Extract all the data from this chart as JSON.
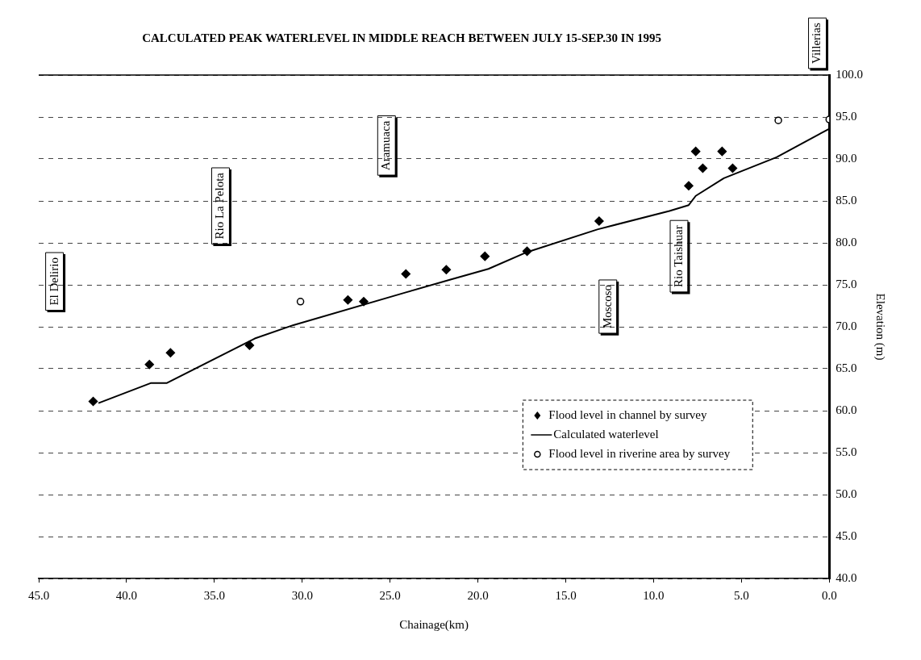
{
  "chart_data": {
    "type": "scatter",
    "title": "CALCULATED PEAK WATERLEVEL IN MIDDLE REACH BETWEEN JULY 15-SEP.30 IN 1995",
    "xlabel": "Chainage(km)",
    "ylabel": "Elevation (m)",
    "xlim": [
      45,
      0
    ],
    "xticks": [
      {
        "value": 45,
        "label": "45.0"
      },
      {
        "value": 40,
        "label": "40.0"
      },
      {
        "value": 35,
        "label": "35.0"
      },
      {
        "value": 30,
        "label": "30.0"
      },
      {
        "value": 25,
        "label": "25.0"
      },
      {
        "value": 20,
        "label": "20.0"
      },
      {
        "value": 15,
        "label": "15.0"
      },
      {
        "value": 10,
        "label": "10.0"
      },
      {
        "value": 5,
        "label": "5.0"
      },
      {
        "value": 0,
        "label": "0.0"
      }
    ],
    "ylim": [
      40,
      100
    ],
    "yticks": [
      {
        "value": 40,
        "label": "40.0"
      },
      {
        "value": 45,
        "label": "45.0"
      },
      {
        "value": 50,
        "label": "50.0"
      },
      {
        "value": 55,
        "label": "55.0"
      },
      {
        "value": 60,
        "label": "60.0"
      },
      {
        "value": 65,
        "label": "65.0"
      },
      {
        "value": 70,
        "label": "70.0"
      },
      {
        "value": 75,
        "label": "75.0"
      },
      {
        "value": 80,
        "label": "80.0"
      },
      {
        "value": 85,
        "label": "85.0"
      },
      {
        "value": 90,
        "label": "90.0"
      },
      {
        "value": 95,
        "label": "95.0"
      },
      {
        "value": 100,
        "label": "100.0"
      }
    ],
    "grid": "y",
    "legend": "bottom right",
    "series": [
      {
        "name": "Flood level in channel by survey",
        "type": "scatter",
        "marker": "diamond",
        "color": "#000000",
        "x": [
          41.9,
          38.7,
          37.5,
          33.0,
          27.4,
          26.5,
          24.1,
          21.8,
          19.6,
          17.2,
          13.1,
          8.0,
          7.6,
          7.2,
          6.1,
          5.5
        ],
        "values": [
          61.1,
          65.5,
          66.9,
          67.8,
          73.2,
          73.0,
          76.3,
          76.8,
          78.4,
          79.0,
          82.6,
          86.8,
          90.9,
          88.9,
          90.9,
          88.9
        ]
      },
      {
        "name": "Calculated waterlevel",
        "type": "line",
        "marker": "none",
        "line_style": "solid",
        "color": "#000000",
        "x": [
          41.6,
          38.6,
          37.7,
          32.7,
          30.5,
          24.1,
          21.6,
          19.4,
          17.2,
          13.2,
          9.1,
          8.0,
          7.6,
          6.0,
          3.0,
          0
        ],
        "values": [
          60.9,
          63.3,
          63.3,
          68.6,
          70.2,
          74.1,
          75.6,
          76.9,
          78.9,
          81.6,
          83.8,
          84.5,
          85.6,
          87.7,
          90.2,
          93.6
        ]
      },
      {
        "name": "Flood level in riverine area by survey",
        "type": "scatter",
        "marker": "circle",
        "color": "#000000",
        "x": [
          30.1,
          2.9,
          0
        ],
        "values": [
          73.0,
          94.6,
          94.7
        ]
      }
    ],
    "annotations": [
      "El Delirio",
      "Rio La Pelota",
      "Aramuaca",
      "Moscoso",
      "Rio Taishuar",
      "Villerias"
    ]
  }
}
